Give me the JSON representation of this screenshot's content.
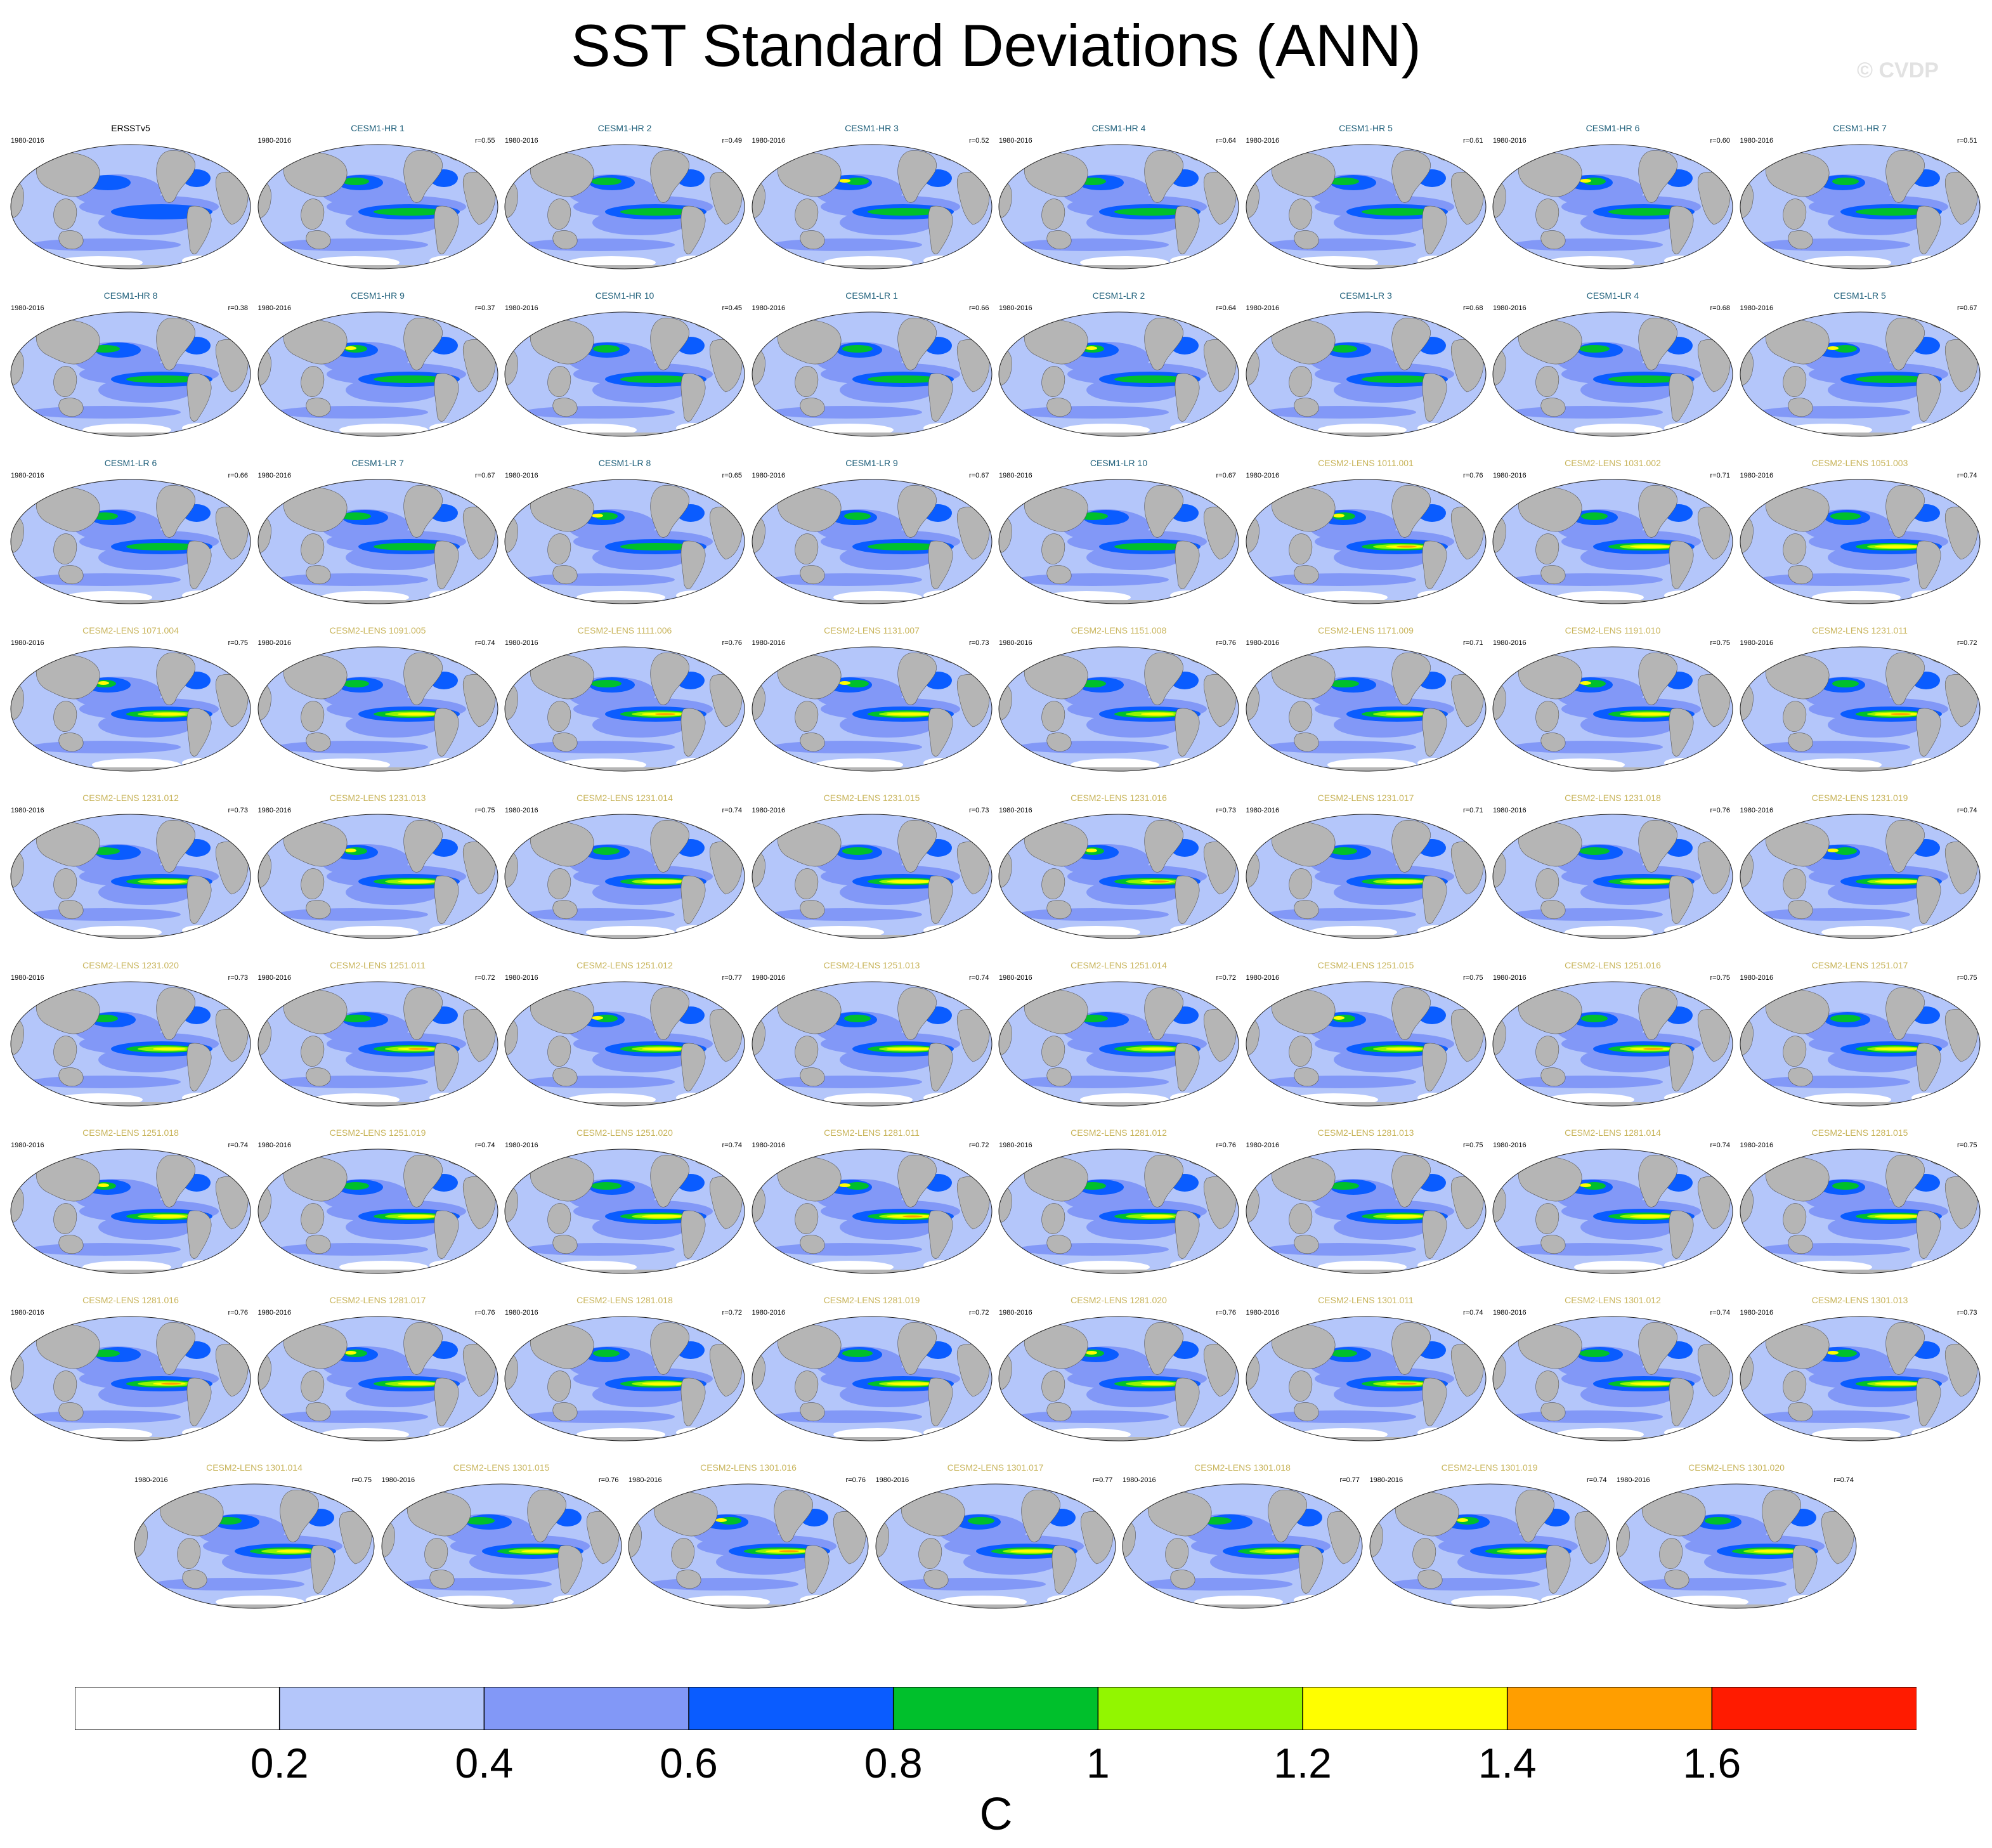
{
  "title": "SST Standard Deviations (ANN)",
  "watermark": "© CVDP",
  "period": "1980-2016",
  "title_colors": {
    "obs": "#000000",
    "cesm1": "#1e5f7a",
    "cesm2": "#c8b45a"
  },
  "legend": {
    "units": "C",
    "ticks": [
      "0.2",
      "0.4",
      "0.6",
      "0.8",
      "1",
      "1.2",
      "1.4",
      "1.6"
    ],
    "colors": [
      "#ffffff",
      "#b4c6fa",
      "#8298f7",
      "#0a5cff",
      "#00c02c",
      "#92f600",
      "#fffe00",
      "#ff9e00",
      "#ff1b00"
    ]
  },
  "panels": [
    {
      "title": "ERSSTv5",
      "r": "",
      "group": "obs"
    },
    {
      "title": "CESM1-HR 1",
      "r": "r=0.55",
      "group": "cesm1"
    },
    {
      "title": "CESM1-HR 2",
      "r": "r=0.49",
      "group": "cesm1"
    },
    {
      "title": "CESM1-HR 3",
      "r": "r=0.52",
      "group": "cesm1"
    },
    {
      "title": "CESM1-HR 4",
      "r": "r=0.64",
      "group": "cesm1"
    },
    {
      "title": "CESM1-HR 5",
      "r": "r=0.61",
      "group": "cesm1"
    },
    {
      "title": "CESM1-HR 6",
      "r": "r=0.60",
      "group": "cesm1"
    },
    {
      "title": "CESM1-HR 7",
      "r": "r=0.51",
      "group": "cesm1"
    },
    {
      "title": "CESM1-HR 8",
      "r": "r=0.38",
      "group": "cesm1"
    },
    {
      "title": "CESM1-HR 9",
      "r": "r=0.37",
      "group": "cesm1"
    },
    {
      "title": "CESM1-HR 10",
      "r": "r=0.45",
      "group": "cesm1"
    },
    {
      "title": "CESM1-LR 1",
      "r": "r=0.66",
      "group": "cesm1"
    },
    {
      "title": "CESM1-LR 2",
      "r": "r=0.64",
      "group": "cesm1"
    },
    {
      "title": "CESM1-LR 3",
      "r": "r=0.68",
      "group": "cesm1"
    },
    {
      "title": "CESM1-LR 4",
      "r": "r=0.68",
      "group": "cesm1"
    },
    {
      "title": "CESM1-LR 5",
      "r": "r=0.67",
      "group": "cesm1"
    },
    {
      "title": "CESM1-LR 6",
      "r": "r=0.66",
      "group": "cesm1"
    },
    {
      "title": "CESM1-LR 7",
      "r": "r=0.67",
      "group": "cesm1"
    },
    {
      "title": "CESM1-LR 8",
      "r": "r=0.65",
      "group": "cesm1"
    },
    {
      "title": "CESM1-LR 9",
      "r": "r=0.67",
      "group": "cesm1"
    },
    {
      "title": "CESM1-LR 10",
      "r": "r=0.67",
      "group": "cesm1"
    },
    {
      "title": "CESM2-LENS 1011.001",
      "r": "r=0.76",
      "group": "cesm2"
    },
    {
      "title": "CESM2-LENS 1031.002",
      "r": "r=0.71",
      "group": "cesm2"
    },
    {
      "title": "CESM2-LENS 1051.003",
      "r": "r=0.74",
      "group": "cesm2"
    },
    {
      "title": "CESM2-LENS 1071.004",
      "r": "r=0.75",
      "group": "cesm2"
    },
    {
      "title": "CESM2-LENS 1091.005",
      "r": "r=0.74",
      "group": "cesm2"
    },
    {
      "title": "CESM2-LENS 1111.006",
      "r": "r=0.76",
      "group": "cesm2"
    },
    {
      "title": "CESM2-LENS 1131.007",
      "r": "r=0.73",
      "group": "cesm2"
    },
    {
      "title": "CESM2-LENS 1151.008",
      "r": "r=0.76",
      "group": "cesm2"
    },
    {
      "title": "CESM2-LENS 1171.009",
      "r": "r=0.71",
      "group": "cesm2"
    },
    {
      "title": "CESM2-LENS 1191.010",
      "r": "r=0.75",
      "group": "cesm2"
    },
    {
      "title": "CESM2-LENS 1231.011",
      "r": "r=0.72",
      "group": "cesm2"
    },
    {
      "title": "CESM2-LENS 1231.012",
      "r": "r=0.73",
      "group": "cesm2"
    },
    {
      "title": "CESM2-LENS 1231.013",
      "r": "r=0.75",
      "group": "cesm2"
    },
    {
      "title": "CESM2-LENS 1231.014",
      "r": "r=0.74",
      "group": "cesm2"
    },
    {
      "title": "CESM2-LENS 1231.015",
      "r": "r=0.73",
      "group": "cesm2"
    },
    {
      "title": "CESM2-LENS 1231.016",
      "r": "r=0.73",
      "group": "cesm2"
    },
    {
      "title": "CESM2-LENS 1231.017",
      "r": "r=0.71",
      "group": "cesm2"
    },
    {
      "title": "CESM2-LENS 1231.018",
      "r": "r=0.76",
      "group": "cesm2"
    },
    {
      "title": "CESM2-LENS 1231.019",
      "r": "r=0.74",
      "group": "cesm2"
    },
    {
      "title": "CESM2-LENS 1231.020",
      "r": "r=0.73",
      "group": "cesm2"
    },
    {
      "title": "CESM2-LENS 1251.011",
      "r": "r=0.72",
      "group": "cesm2"
    },
    {
      "title": "CESM2-LENS 1251.012",
      "r": "r=0.77",
      "group": "cesm2"
    },
    {
      "title": "CESM2-LENS 1251.013",
      "r": "r=0.74",
      "group": "cesm2"
    },
    {
      "title": "CESM2-LENS 1251.014",
      "r": "r=0.72",
      "group": "cesm2"
    },
    {
      "title": "CESM2-LENS 1251.015",
      "r": "r=0.75",
      "group": "cesm2"
    },
    {
      "title": "CESM2-LENS 1251.016",
      "r": "r=0.75",
      "group": "cesm2"
    },
    {
      "title": "CESM2-LENS 1251.017",
      "r": "r=0.75",
      "group": "cesm2"
    },
    {
      "title": "CESM2-LENS 1251.018",
      "r": "r=0.74",
      "group": "cesm2"
    },
    {
      "title": "CESM2-LENS 1251.019",
      "r": "r=0.74",
      "group": "cesm2"
    },
    {
      "title": "CESM2-LENS 1251.020",
      "r": "r=0.74",
      "group": "cesm2"
    },
    {
      "title": "CESM2-LENS 1281.011",
      "r": "r=0.72",
      "group": "cesm2"
    },
    {
      "title": "CESM2-LENS 1281.012",
      "r": "r=0.76",
      "group": "cesm2"
    },
    {
      "title": "CESM2-LENS 1281.013",
      "r": "r=0.75",
      "group": "cesm2"
    },
    {
      "title": "CESM2-LENS 1281.014",
      "r": "r=0.74",
      "group": "cesm2"
    },
    {
      "title": "CESM2-LENS 1281.015",
      "r": "r=0.75",
      "group": "cesm2"
    },
    {
      "title": "CESM2-LENS 1281.016",
      "r": "r=0.76",
      "group": "cesm2"
    },
    {
      "title": "CESM2-LENS 1281.017",
      "r": "r=0.76",
      "group": "cesm2"
    },
    {
      "title": "CESM2-LENS 1281.018",
      "r": "r=0.72",
      "group": "cesm2"
    },
    {
      "title": "CESM2-LENS 1281.019",
      "r": "r=0.72",
      "group": "cesm2"
    },
    {
      "title": "CESM2-LENS 1281.020",
      "r": "r=0.76",
      "group": "cesm2"
    },
    {
      "title": "CESM2-LENS 1301.011",
      "r": "r=0.74",
      "group": "cesm2"
    },
    {
      "title": "CESM2-LENS 1301.012",
      "r": "r=0.74",
      "group": "cesm2"
    },
    {
      "title": "CESM2-LENS 1301.013",
      "r": "r=0.73",
      "group": "cesm2"
    },
    {
      "title": "CESM2-LENS 1301.014",
      "r": "r=0.75",
      "group": "cesm2"
    },
    {
      "title": "CESM2-LENS 1301.015",
      "r": "r=0.76",
      "group": "cesm2"
    },
    {
      "title": "CESM2-LENS 1301.016",
      "r": "r=0.76",
      "group": "cesm2"
    },
    {
      "title": "CESM2-LENS 1301.017",
      "r": "r=0.77",
      "group": "cesm2"
    },
    {
      "title": "CESM2-LENS 1301.018",
      "r": "r=0.77",
      "group": "cesm2"
    },
    {
      "title": "CESM2-LENS 1301.019",
      "r": "r=0.74",
      "group": "cesm2"
    },
    {
      "title": "CESM2-LENS 1301.020",
      "r": "r=0.74",
      "group": "cesm2"
    }
  ]
}
